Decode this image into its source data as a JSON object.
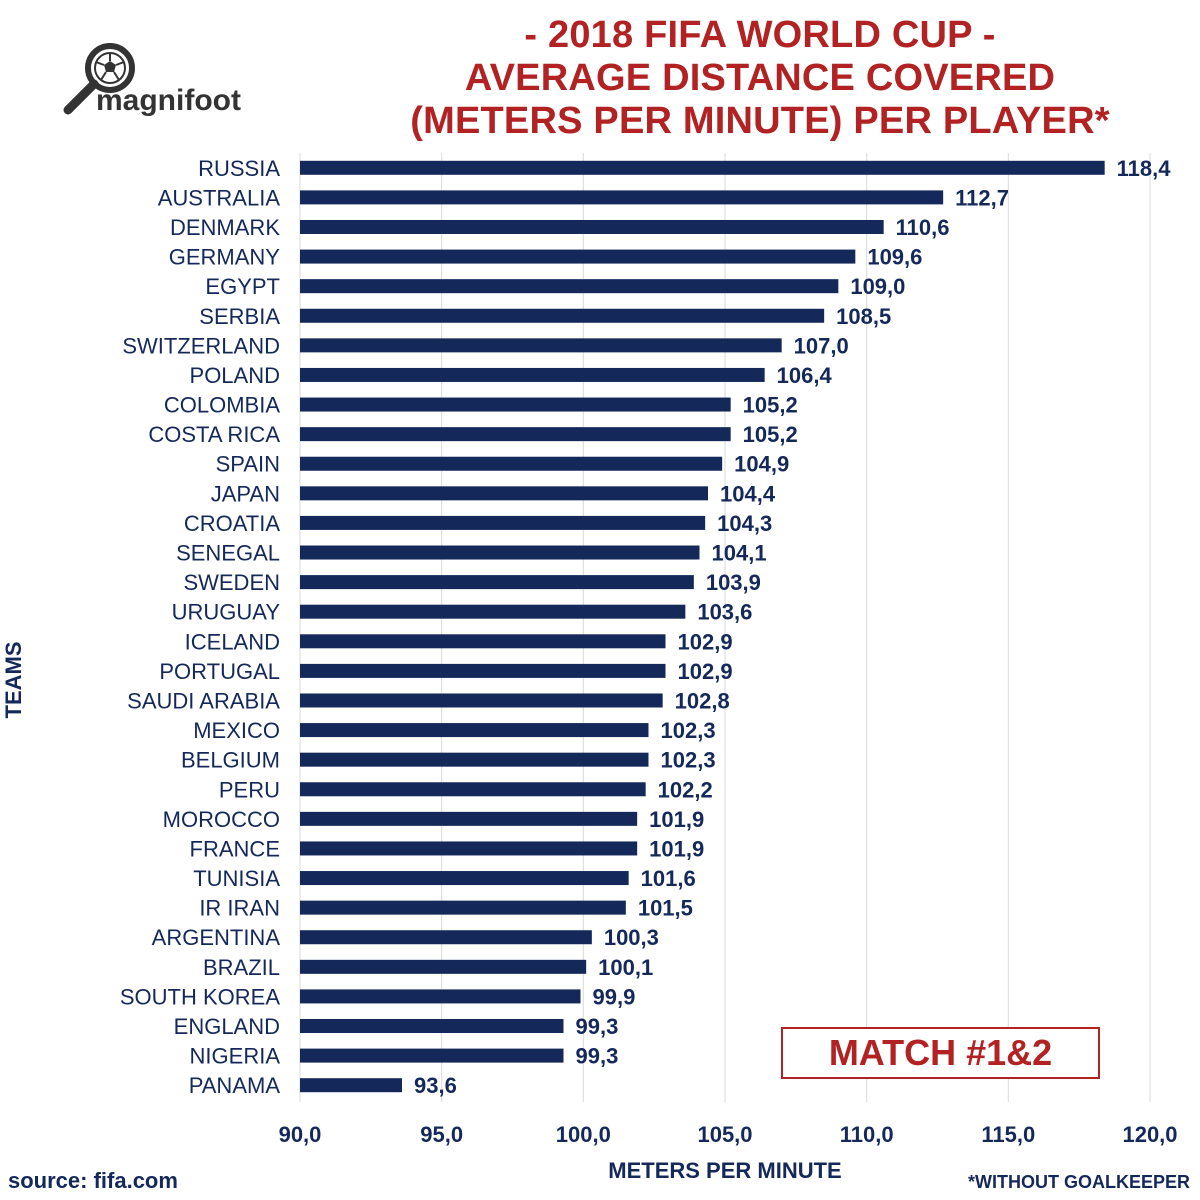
{
  "title_lines": [
    "- 2018 FIFA WORLD CUP -",
    "AVERAGE DISTANCE COVERED",
    "(METERS PER MINUTE) PER PLAYER*"
  ],
  "logo_text": "magnifoot",
  "badge": "MATCH #1&2",
  "source": "source: fifa.com",
  "footnote": "*WITHOUT GOALKEEPER",
  "colors": {
    "bar": "#14285a",
    "title": "#b22222",
    "text": "#14285a",
    "grid": "#d9d9d9"
  },
  "chart_data": {
    "type": "bar",
    "orientation": "horizontal",
    "xlabel": "METERS PER MINUTE",
    "ylabel": "TEAMS",
    "xlim": [
      90,
      120
    ],
    "xticks": [
      "90,0",
      "95,0",
      "100,0",
      "105,0",
      "110,0",
      "115,0",
      "120,0"
    ],
    "grid": true,
    "categories": [
      "RUSSIA",
      "AUSTRALIA",
      "DENMARK",
      "GERMANY",
      "EGYPT",
      "SERBIA",
      "SWITZERLAND",
      "POLAND",
      "COLOMBIA",
      "COSTA RICA",
      "SPAIN",
      "JAPAN",
      "CROATIA",
      "SENEGAL",
      "SWEDEN",
      "URUGUAY",
      "ICELAND",
      "PORTUGAL",
      "SAUDI ARABIA",
      "MEXICO",
      "BELGIUM",
      "PERU",
      "MOROCCO",
      "FRANCE",
      "TUNISIA",
      "IR IRAN",
      "ARGENTINA",
      "BRAZIL",
      "SOUTH KOREA",
      "ENGLAND",
      "NIGERIA",
      "PANAMA"
    ],
    "values": [
      118.4,
      112.7,
      110.6,
      109.6,
      109.0,
      108.5,
      107.0,
      106.4,
      105.2,
      105.2,
      104.9,
      104.4,
      104.3,
      104.1,
      103.9,
      103.6,
      102.9,
      102.9,
      102.8,
      102.3,
      102.3,
      102.2,
      101.9,
      101.9,
      101.6,
      101.5,
      100.3,
      100.1,
      99.9,
      99.3,
      99.3,
      93.6
    ],
    "value_labels": [
      "118,4",
      "112,7",
      "110,6",
      "109,6",
      "109,0",
      "108,5",
      "107,0",
      "106,4",
      "105,2",
      "105,2",
      "104,9",
      "104,4",
      "104,3",
      "104,1",
      "103,9",
      "103,6",
      "102,9",
      "102,9",
      "102,8",
      "102,3",
      "102,3",
      "102,2",
      "101,9",
      "101,9",
      "101,6",
      "101,5",
      "100,3",
      "100,1",
      "99,9",
      "99,3",
      "99,3",
      "93,6"
    ]
  }
}
